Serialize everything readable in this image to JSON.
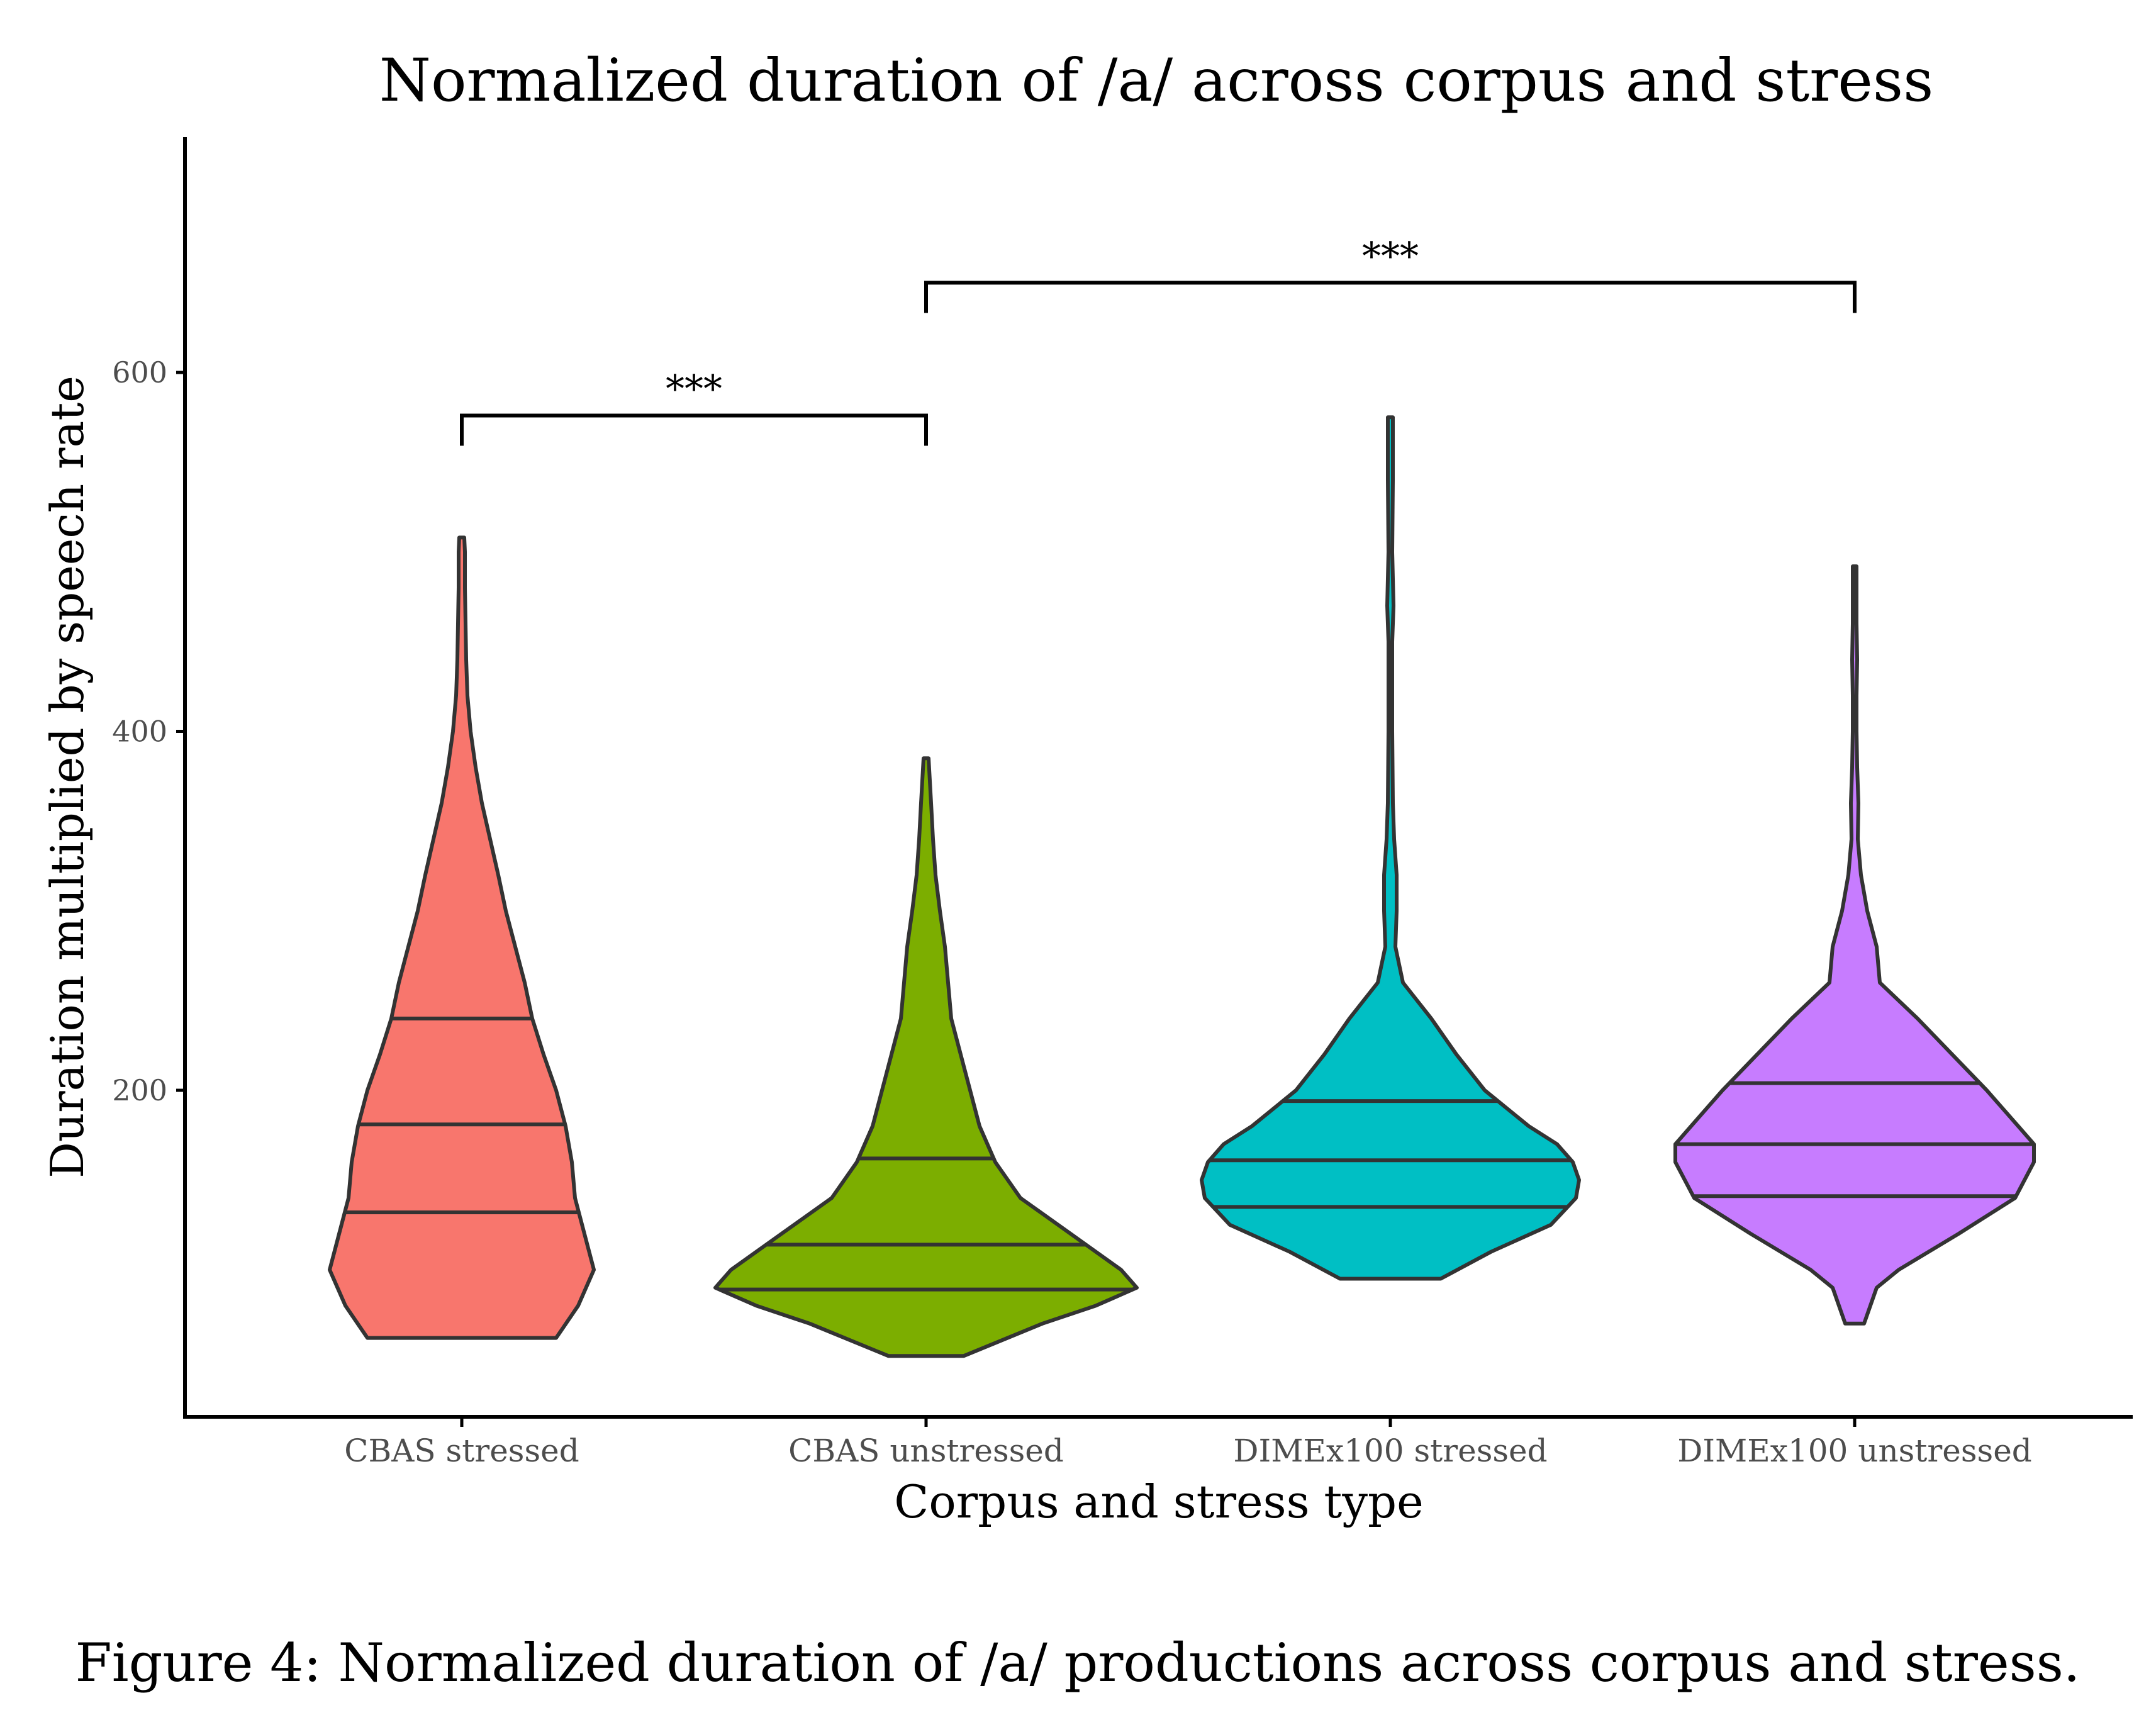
{
  "chart_data": {
    "type": "violin",
    "title": "Normalized duration of /a/ across corpus and stress",
    "xlabel": "Corpus and stress type",
    "ylabel": "Duration multiplied by speech rate",
    "ylim": [
      0,
      720
    ],
    "yticks": [
      200,
      400,
      600
    ],
    "categories": [
      "CBAS stressed",
      "CBAS unstressed",
      "DIMEx100 stressed",
      "DIMEx100 unstressed"
    ],
    "series": [
      {
        "category": "CBAS stressed",
        "color": "#F8766D",
        "min": 62,
        "max": 508,
        "quantiles": [
          132,
          181,
          240
        ],
        "density": [
          [
            62,
            150
          ],
          [
            80,
            185
          ],
          [
            100,
            210
          ],
          [
            120,
            195
          ],
          [
            140,
            180
          ],
          [
            160,
            175
          ],
          [
            180,
            165
          ],
          [
            200,
            150
          ],
          [
            220,
            130
          ],
          [
            240,
            112
          ],
          [
            260,
            100
          ],
          [
            280,
            85
          ],
          [
            300,
            70
          ],
          [
            320,
            58
          ],
          [
            340,
            45
          ],
          [
            360,
            32
          ],
          [
            380,
            22
          ],
          [
            400,
            14
          ],
          [
            420,
            9
          ],
          [
            440,
            7
          ],
          [
            460,
            6
          ],
          [
            480,
            5
          ],
          [
            500,
            5
          ],
          [
            508,
            4
          ]
        ]
      },
      {
        "category": "CBAS unstressed",
        "color": "#7CAE00",
        "min": 52,
        "max": 385,
        "quantiles": [
          89,
          114,
          162
        ],
        "density": [
          [
            52,
            60
          ],
          [
            70,
            185
          ],
          [
            80,
            270
          ],
          [
            90,
            335
          ],
          [
            100,
            310
          ],
          [
            120,
            230
          ],
          [
            140,
            150
          ],
          [
            160,
            110
          ],
          [
            180,
            85
          ],
          [
            200,
            70
          ],
          [
            220,
            55
          ],
          [
            240,
            40
          ],
          [
            260,
            35
          ],
          [
            280,
            30
          ],
          [
            300,
            22
          ],
          [
            320,
            15
          ],
          [
            340,
            11
          ],
          [
            360,
            8
          ],
          [
            385,
            4
          ]
        ]
      },
      {
        "category": "DIMEx100 stressed",
        "color": "#00BFC4",
        "min": 95,
        "max": 575,
        "quantiles": [
          135,
          161,
          194
        ],
        "density": [
          [
            95,
            80
          ],
          [
            110,
            160
          ],
          [
            125,
            255
          ],
          [
            140,
            295
          ],
          [
            150,
            300
          ],
          [
            160,
            290
          ],
          [
            170,
            265
          ],
          [
            180,
            220
          ],
          [
            200,
            150
          ],
          [
            220,
            105
          ],
          [
            240,
            65
          ],
          [
            260,
            20
          ],
          [
            280,
            8
          ],
          [
            300,
            10
          ],
          [
            320,
            10
          ],
          [
            340,
            6
          ],
          [
            360,
            4
          ],
          [
            400,
            3
          ],
          [
            450,
            3
          ],
          [
            470,
            5
          ],
          [
            500,
            3
          ],
          [
            540,
            4
          ],
          [
            575,
            4
          ]
        ]
      },
      {
        "category": "DIMEx100 unstressed",
        "color": "#C77CFF",
        "min": 70,
        "max": 492,
        "quantiles": [
          141,
          170,
          204
        ],
        "density": [
          [
            70,
            15
          ],
          [
            90,
            35
          ],
          [
            100,
            70
          ],
          [
            120,
            165
          ],
          [
            140,
            255
          ],
          [
            160,
            285
          ],
          [
            170,
            285
          ],
          [
            180,
            260
          ],
          [
            200,
            210
          ],
          [
            220,
            155
          ],
          [
            240,
            100
          ],
          [
            260,
            40
          ],
          [
            280,
            35
          ],
          [
            300,
            20
          ],
          [
            320,
            10
          ],
          [
            340,
            5
          ],
          [
            360,
            6
          ],
          [
            380,
            4
          ],
          [
            400,
            3
          ],
          [
            420,
            3
          ],
          [
            440,
            4
          ],
          [
            460,
            3
          ],
          [
            492,
            3
          ]
        ]
      }
    ],
    "significance": [
      {
        "from": 0,
        "to": 1,
        "label": "***",
        "y": 576
      },
      {
        "from": 1,
        "to": 3,
        "label": "***",
        "y": 650
      }
    ]
  },
  "caption": "Figure 4: Normalized duration of /a/ productions across corpus and stress."
}
